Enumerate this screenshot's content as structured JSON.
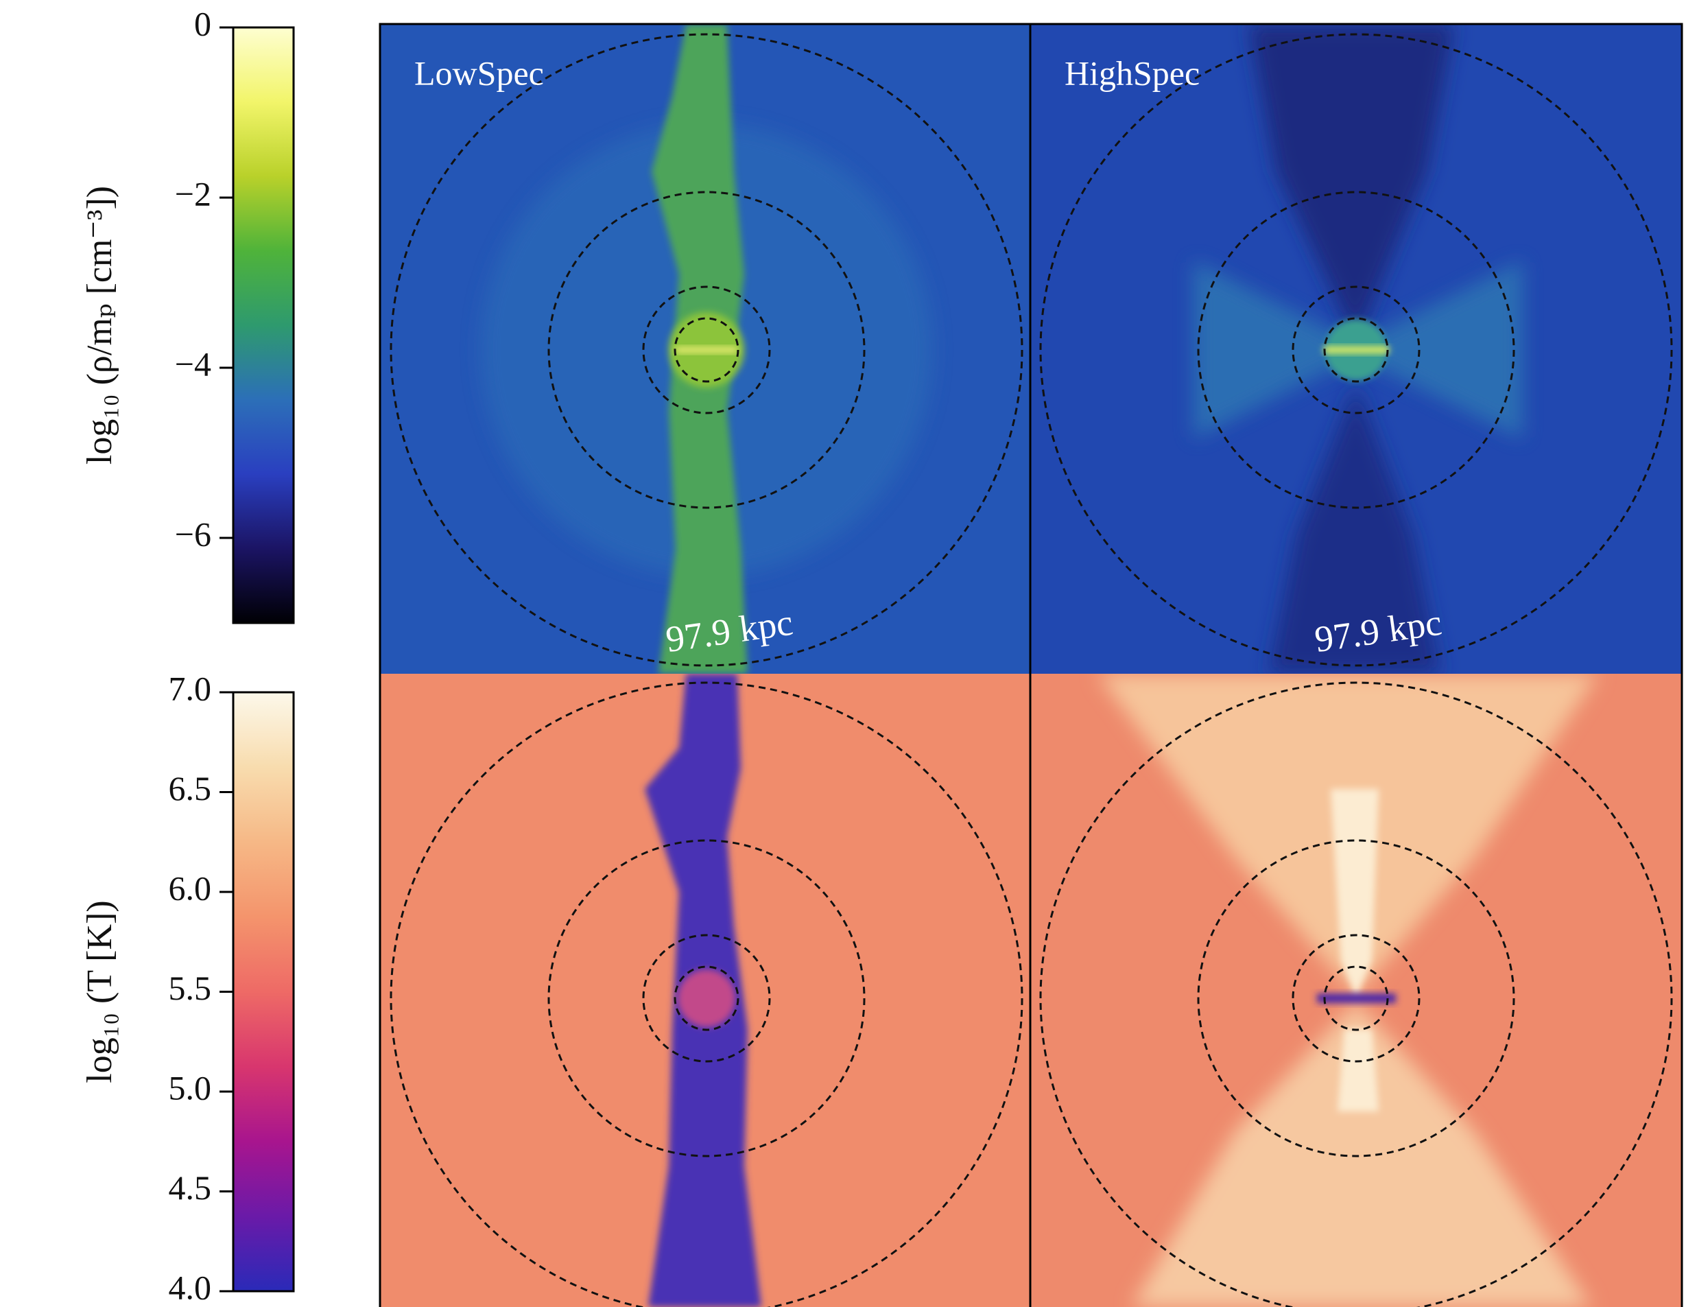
{
  "chart_data": [
    {
      "type": "colorbar",
      "ylabel": "log₁₀ (ρ/mₚ [cm⁻³])",
      "ylim": [
        -7,
        0
      ],
      "yticks": [
        0,
        {
          "value": -2,
          "label": "−2"
        },
        {
          "value": -4,
          "label": "−4"
        },
        {
          "value": -6,
          "label": "−6"
        }
      ],
      "colors": [
        "#000004",
        "#1b1464",
        "#2a3fc0",
        "#2c6fb8",
        "#2e9a6e",
        "#4fb33a",
        "#b9d12a",
        "#f2f56a",
        "#fefed0"
      ]
    },
    {
      "type": "colorbar",
      "ylabel": "log₁₀ (T [K])",
      "ylim": [
        4,
        7
      ],
      "yticks": [
        {
          "value": 4,
          "label": "4.0"
        },
        4.5,
        {
          "value": 5,
          "label": "5.0"
        },
        5.5,
        {
          "value": 6,
          "label": "6.0"
        },
        6.5,
        {
          "value": 7,
          "label": "7.0"
        }
      ],
      "colors": [
        "#2a2ab8",
        "#6a1aa8",
        "#a8158e",
        "#d8366e",
        "#ee6a66",
        "#f4946c",
        "#f6b886",
        "#f8dcae",
        "#fcf8ea"
      ]
    }
  ],
  "panels": [
    {
      "label": "LowSpec",
      "scale_label": "97.9 kpc"
    },
    {
      "label": "HighSpec",
      "scale_label": "97.9 kpc"
    }
  ]
}
